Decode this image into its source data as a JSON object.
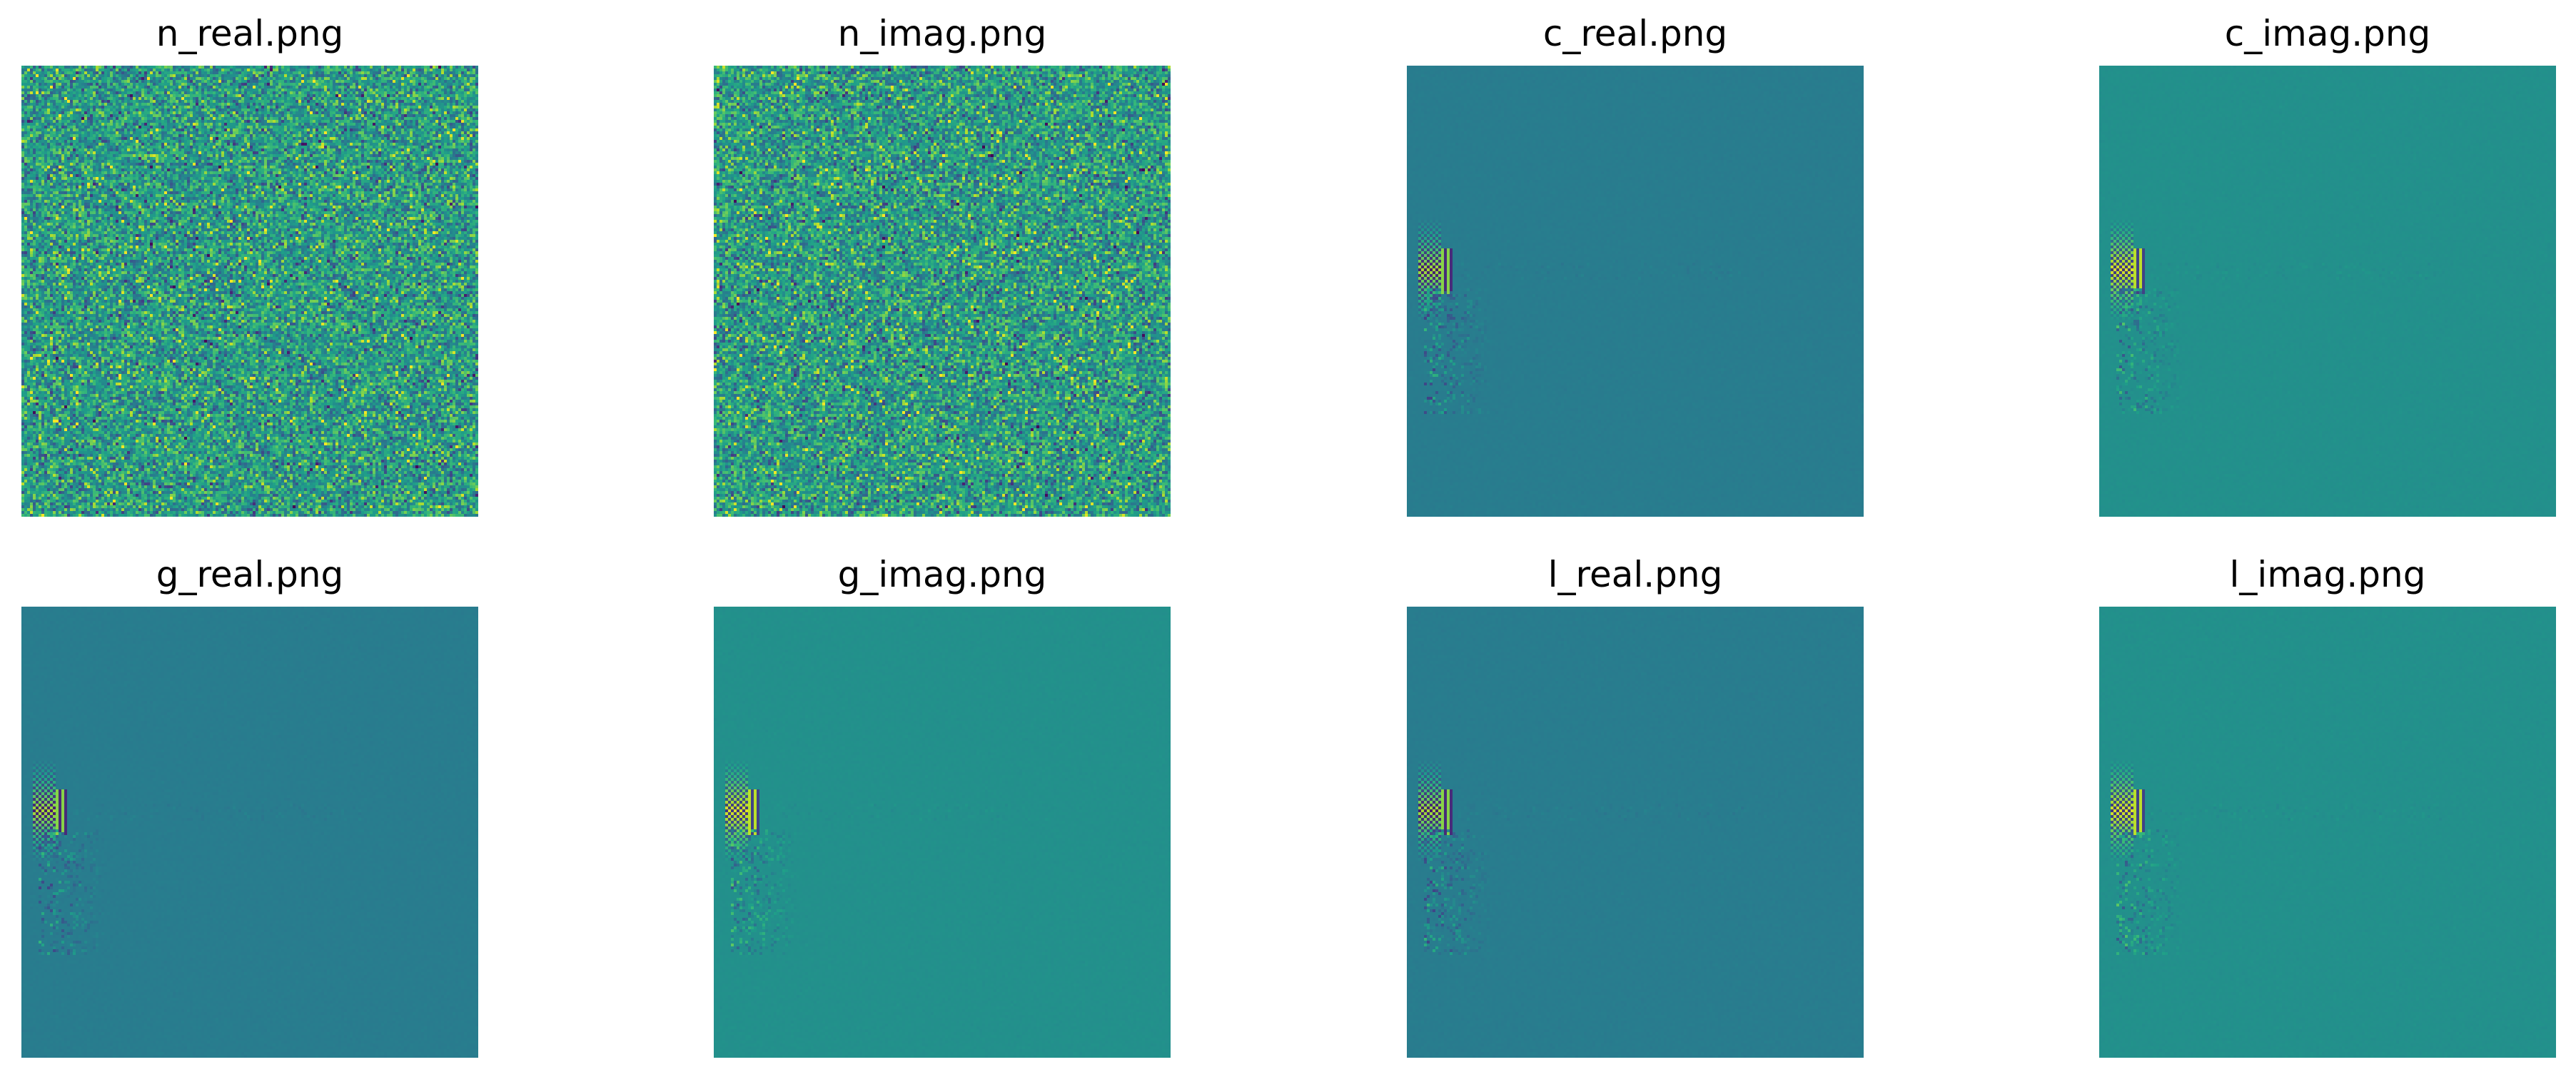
{
  "chart_data": [
    {
      "type": "heatmap",
      "title": "n_real.png",
      "colormap": "viridis",
      "pattern": "noise",
      "axes": "off"
    },
    {
      "type": "heatmap",
      "title": "n_imag.png",
      "colormap": "viridis",
      "pattern": "noise",
      "axes": "off"
    },
    {
      "type": "heatmap",
      "title": "c_real.png",
      "colormap": "viridis",
      "pattern": "structured",
      "background_level": 0.42,
      "axes": "off"
    },
    {
      "type": "heatmap",
      "title": "c_imag.png",
      "colormap": "viridis",
      "pattern": "structured",
      "background_level": 0.5,
      "axes": "off"
    },
    {
      "type": "heatmap",
      "title": "g_real.png",
      "colormap": "viridis",
      "pattern": "structured",
      "background_level": 0.42,
      "axes": "off"
    },
    {
      "type": "heatmap",
      "title": "g_imag.png",
      "colormap": "viridis",
      "pattern": "structured",
      "background_level": 0.5,
      "axes": "off"
    },
    {
      "type": "heatmap",
      "title": "l_real.png",
      "colormap": "viridis",
      "pattern": "structured",
      "background_level": 0.42,
      "axes": "off"
    },
    {
      "type": "heatmap",
      "title": "l_imag.png",
      "colormap": "viridis",
      "pattern": "structured",
      "background_level": 0.5,
      "axes": "off"
    }
  ]
}
